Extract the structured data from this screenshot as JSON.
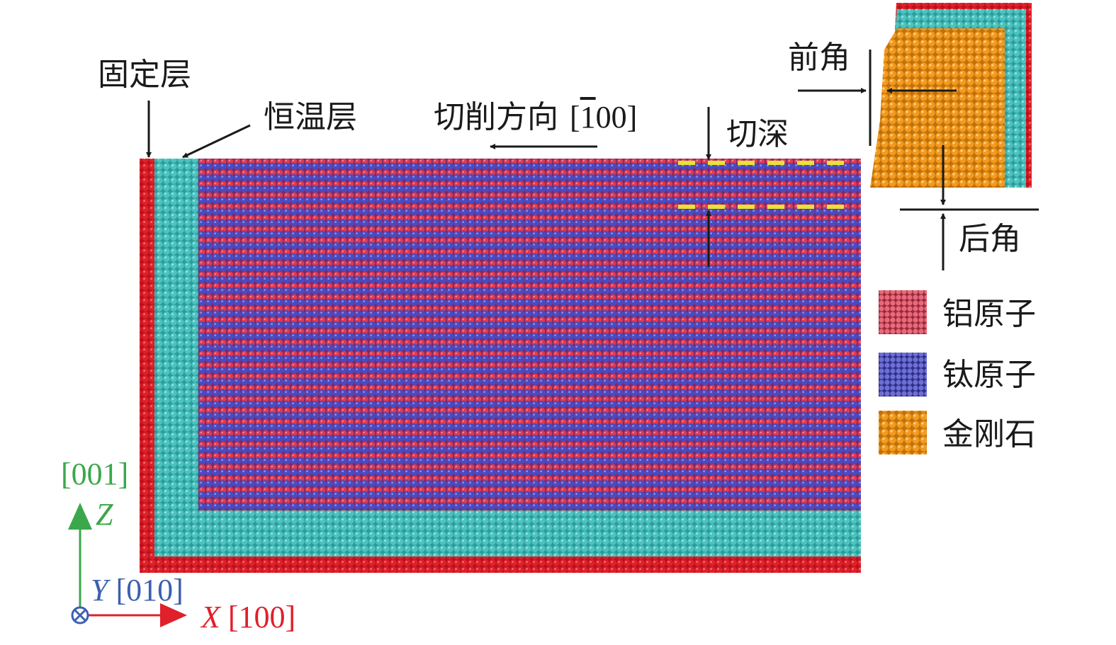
{
  "labels": {
    "fixed_layer": "固定层",
    "thermostat_layer": "恒温层",
    "cutting_direction": "切削方向",
    "cutting_direction_index_open": "[",
    "cutting_direction_index_bar": "1",
    "cutting_direction_index_rest": "00]",
    "cut_depth": "切深",
    "rake_angle": "前角",
    "clearance_angle": "后角"
  },
  "legend": [
    {
      "label": "铝原子",
      "color": "#e03a50"
    },
    {
      "label": "钛原子",
      "color": "#4a4bc0"
    },
    {
      "label": "金刚石",
      "color": "#f29a1e"
    }
  ],
  "axes": {
    "z_index": "[001]",
    "z_letter": "Z",
    "y_letter": "Y",
    "y_index": "[010]",
    "x_letter": "X",
    "x_index": "[100]",
    "z_color": "#3aa84a",
    "y_color": "#3b5fb0",
    "x_color": "#e0202a"
  },
  "colors": {
    "aluminum": "#e03a50",
    "titanium": "#4a4bc0",
    "diamond": "#f29a1e",
    "thermostat": "#4cc3c0",
    "fixed": "#e0202a",
    "depth_marker": "#e8e23a"
  }
}
